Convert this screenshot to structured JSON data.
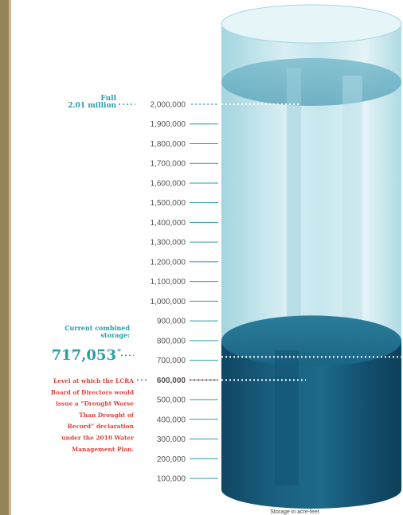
{
  "chart_data": {
    "type": "area",
    "title": "",
    "unit_caption": "Storage in acre-feet",
    "y_ticks": [
      "2,000,000",
      "1,900,000",
      "1,800,000",
      "1,700,000",
      "1,600,000",
      "1,500,000",
      "1,400,000",
      "1,300,000",
      "1,200,000",
      "1,100,000",
      "1,000,000",
      "900,000",
      "800,000",
      "700,000",
      "600,000",
      "500,000",
      "400,000",
      "300,000",
      "200,000",
      "100,000"
    ],
    "ylim": [
      100000,
      2000000
    ],
    "full_capacity": 2010000,
    "current_storage": 717053,
    "drought_trigger": 600000
  },
  "annotations": {
    "full_line1": "Full",
    "full_line2": "2.01 million",
    "current_line1": "Current combined",
    "current_line2": "storage:",
    "current_value": "717,053",
    "current_value_mark": "*",
    "drought_lines": [
      "Level at which the LCRA",
      "Board of Directors would",
      "issue a “Drought Worse",
      "Than Drought of",
      "Record” declaration",
      "under the 2010 Water",
      "Management Plan."
    ]
  },
  "colors": {
    "teal": "#2b9ba6",
    "red": "#e2403a",
    "water_dark": "#124e6c",
    "water_mid": "#1b6e8b",
    "glass": "#bfe3ea",
    "left_bar": "#93845a"
  }
}
